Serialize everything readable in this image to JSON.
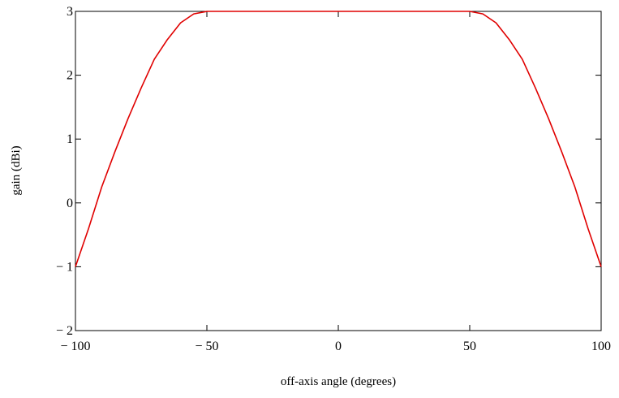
{
  "chart_data": {
    "type": "line",
    "title": "",
    "xlabel": "off-axis angle (degrees)",
    "ylabel": "gain (dBi)",
    "xlim": [
      -100,
      100
    ],
    "ylim": [
      -2,
      3
    ],
    "x_ticks": [
      -100,
      -50,
      0,
      50,
      100
    ],
    "x_tick_labels": [
      "− 100",
      "− 50",
      "0",
      "50",
      "100"
    ],
    "y_ticks": [
      -2,
      -1,
      0,
      1,
      2,
      3
    ],
    "y_tick_labels": [
      "− 2",
      "− 1",
      "0",
      "1",
      "2",
      "3"
    ],
    "grid": false,
    "legend": "none",
    "series": [
      {
        "color": "#e00000",
        "x": [
          -100,
          -95,
          -90,
          -85,
          -80,
          -75,
          -70,
          -65,
          -60,
          -55,
          -50,
          0,
          50,
          55,
          60,
          65,
          70,
          75,
          80,
          85,
          90,
          95,
          100
        ],
        "y": [
          -1.0,
          -0.4,
          0.25,
          0.8,
          1.32,
          1.8,
          2.25,
          2.56,
          2.82,
          2.96,
          3.0,
          3.0,
          3.0,
          2.96,
          2.82,
          2.56,
          2.25,
          1.8,
          1.32,
          0.8,
          0.25,
          -0.4,
          -1.0
        ]
      }
    ]
  }
}
